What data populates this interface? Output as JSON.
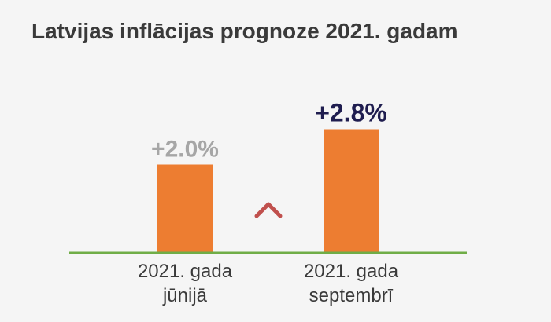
{
  "chart_data": {
    "type": "bar",
    "title": "Latvijas inflācijas prognoze 2021. gadam",
    "categories": [
      [
        "2021. gada",
        "jūnijā"
      ],
      [
        "2021. gada",
        "septembrī"
      ]
    ],
    "values": [
      2.0,
      2.8
    ],
    "data_labels": [
      "+2.0%",
      "+2.8%"
    ],
    "ylim": [
      0,
      3.2
    ],
    "grid": false,
    "legend": "none",
    "annotation": "up-arrow-icon",
    "colors": {
      "bar": "#ed7d31",
      "baseline": "#70ad47",
      "label_old": "#a6a6a6",
      "label_new": "#1f1d4f",
      "tick_text": "#3a3a3a",
      "arrow_top": "#c0504d",
      "arrow_bottom": "#70ad47"
    }
  }
}
